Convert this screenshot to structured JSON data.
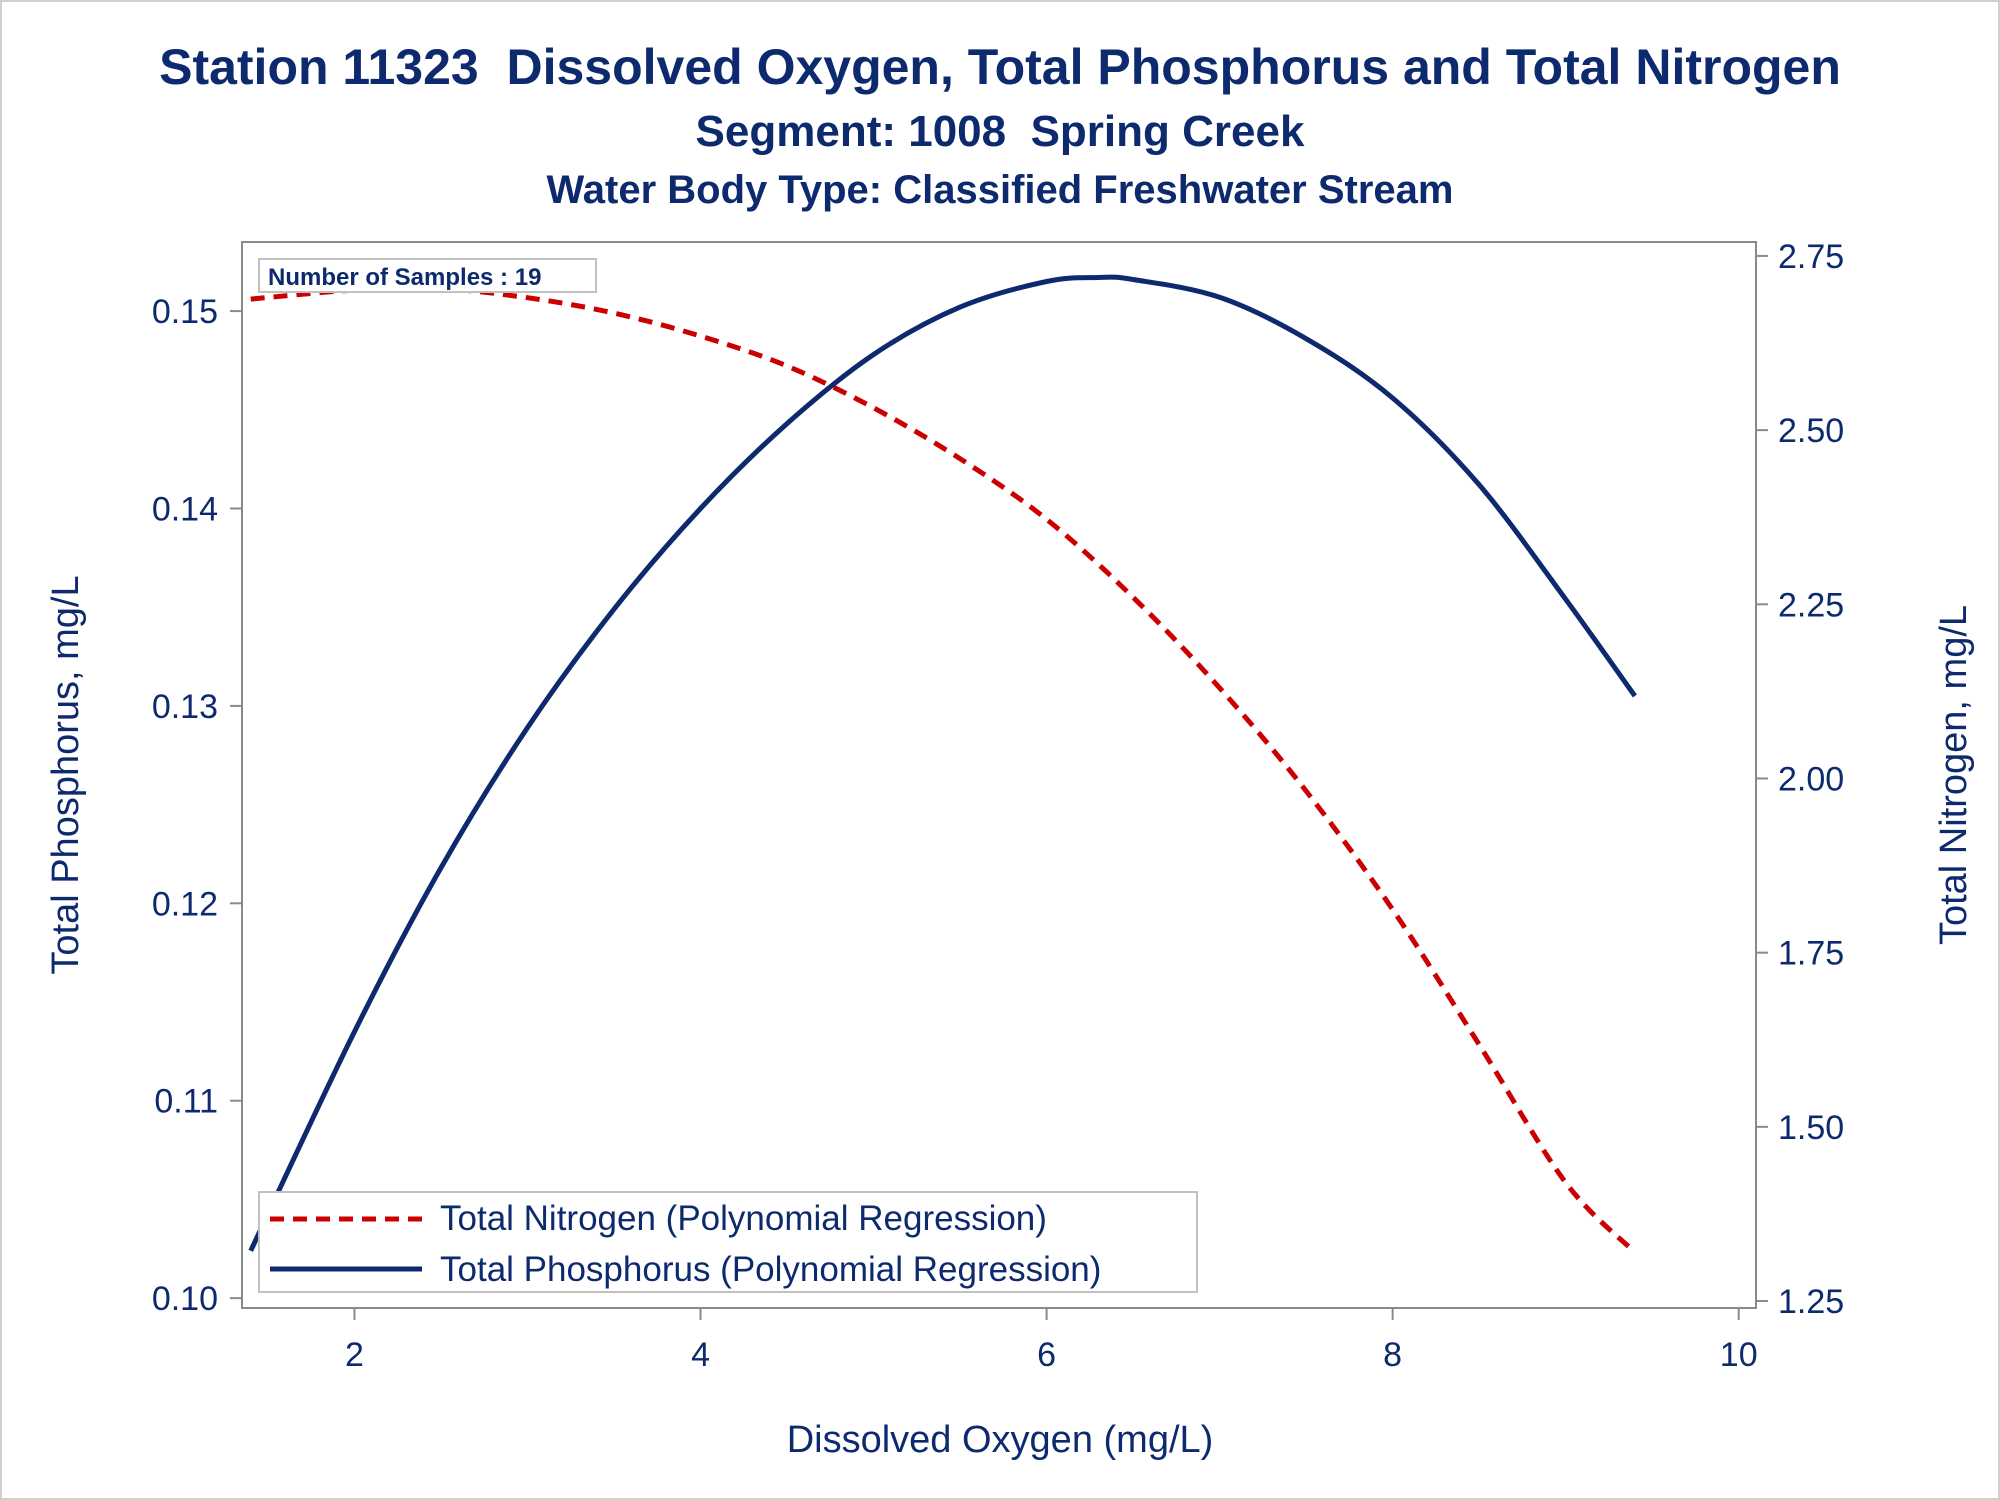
{
  "chart_data": {
    "type": "line",
    "title": "Station 11323  Dissolved Oxygen, Total Phosphorus and Total Nitrogen",
    "subtitle": "Segment: 1008  Spring Creek",
    "subtitle2": "Water Body Type: Classified Freshwater Stream",
    "xlabel": "Dissolved Oxygen (mg/L)",
    "ylabel_left": "Total Phosphorus, mg/L",
    "ylabel_right": "Total Nitrogen, mg/L",
    "xlim": [
      1.35,
      10.1
    ],
    "ylim_left": [
      0.0995,
      0.1535
    ],
    "ylim_right": [
      1.24,
      2.77
    ],
    "x_ticks": [
      2,
      4,
      6,
      8,
      10
    ],
    "x_tick_labels": [
      "2",
      "4",
      "6",
      "8",
      "10"
    ],
    "y_left_ticks": [
      0.1,
      0.11,
      0.12,
      0.13,
      0.14,
      0.15
    ],
    "y_left_tick_labels": [
      "0.10",
      "0.11",
      "0.12",
      "0.13",
      "0.14",
      "0.15"
    ],
    "y_right_ticks": [
      1.25,
      1.5,
      1.75,
      2.0,
      2.25,
      2.5,
      2.75
    ],
    "y_right_tick_labels": [
      "1.25",
      "1.50",
      "1.75",
      "2.00",
      "2.25",
      "2.50",
      "2.75"
    ],
    "annotation": "Number of Samples : 19",
    "legend_position": "bottom-left",
    "series": [
      {
        "name": "Total Nitrogen (Polynomial Regression)",
        "axis": "right",
        "style": "dashed",
        "color": "#cc0000",
        "x": [
          1.4,
          2.0,
          2.5,
          3.0,
          3.5,
          4.0,
          4.5,
          5.0,
          5.5,
          6.0,
          6.5,
          7.0,
          7.5,
          8.0,
          8.5,
          9.0,
          9.4
        ],
        "y": [
          2.688,
          2.701,
          2.703,
          2.69,
          2.668,
          2.635,
          2.592,
          2.532,
          2.459,
          2.372,
          2.26,
          2.13,
          1.982,
          1.812,
          1.618,
          1.42,
          1.32
        ]
      },
      {
        "name": "Total Phosphorus (Polynomial Regression)",
        "axis": "left",
        "style": "solid",
        "color": "#0e2a6e",
        "x": [
          1.4,
          2.0,
          2.5,
          3.0,
          3.5,
          4.0,
          4.5,
          5.0,
          5.5,
          6.0,
          6.3,
          6.5,
          7.0,
          7.5,
          8.0,
          8.5,
          9.0,
          9.4
        ],
        "y": [
          0.1024,
          0.1135,
          0.1218,
          0.1289,
          0.1349,
          0.14,
          0.1443,
          0.1478,
          0.1502,
          0.1515,
          0.1517,
          0.1516,
          0.1507,
          0.1486,
          0.1456,
          0.1412,
          0.1354,
          0.1305
        ]
      }
    ]
  }
}
